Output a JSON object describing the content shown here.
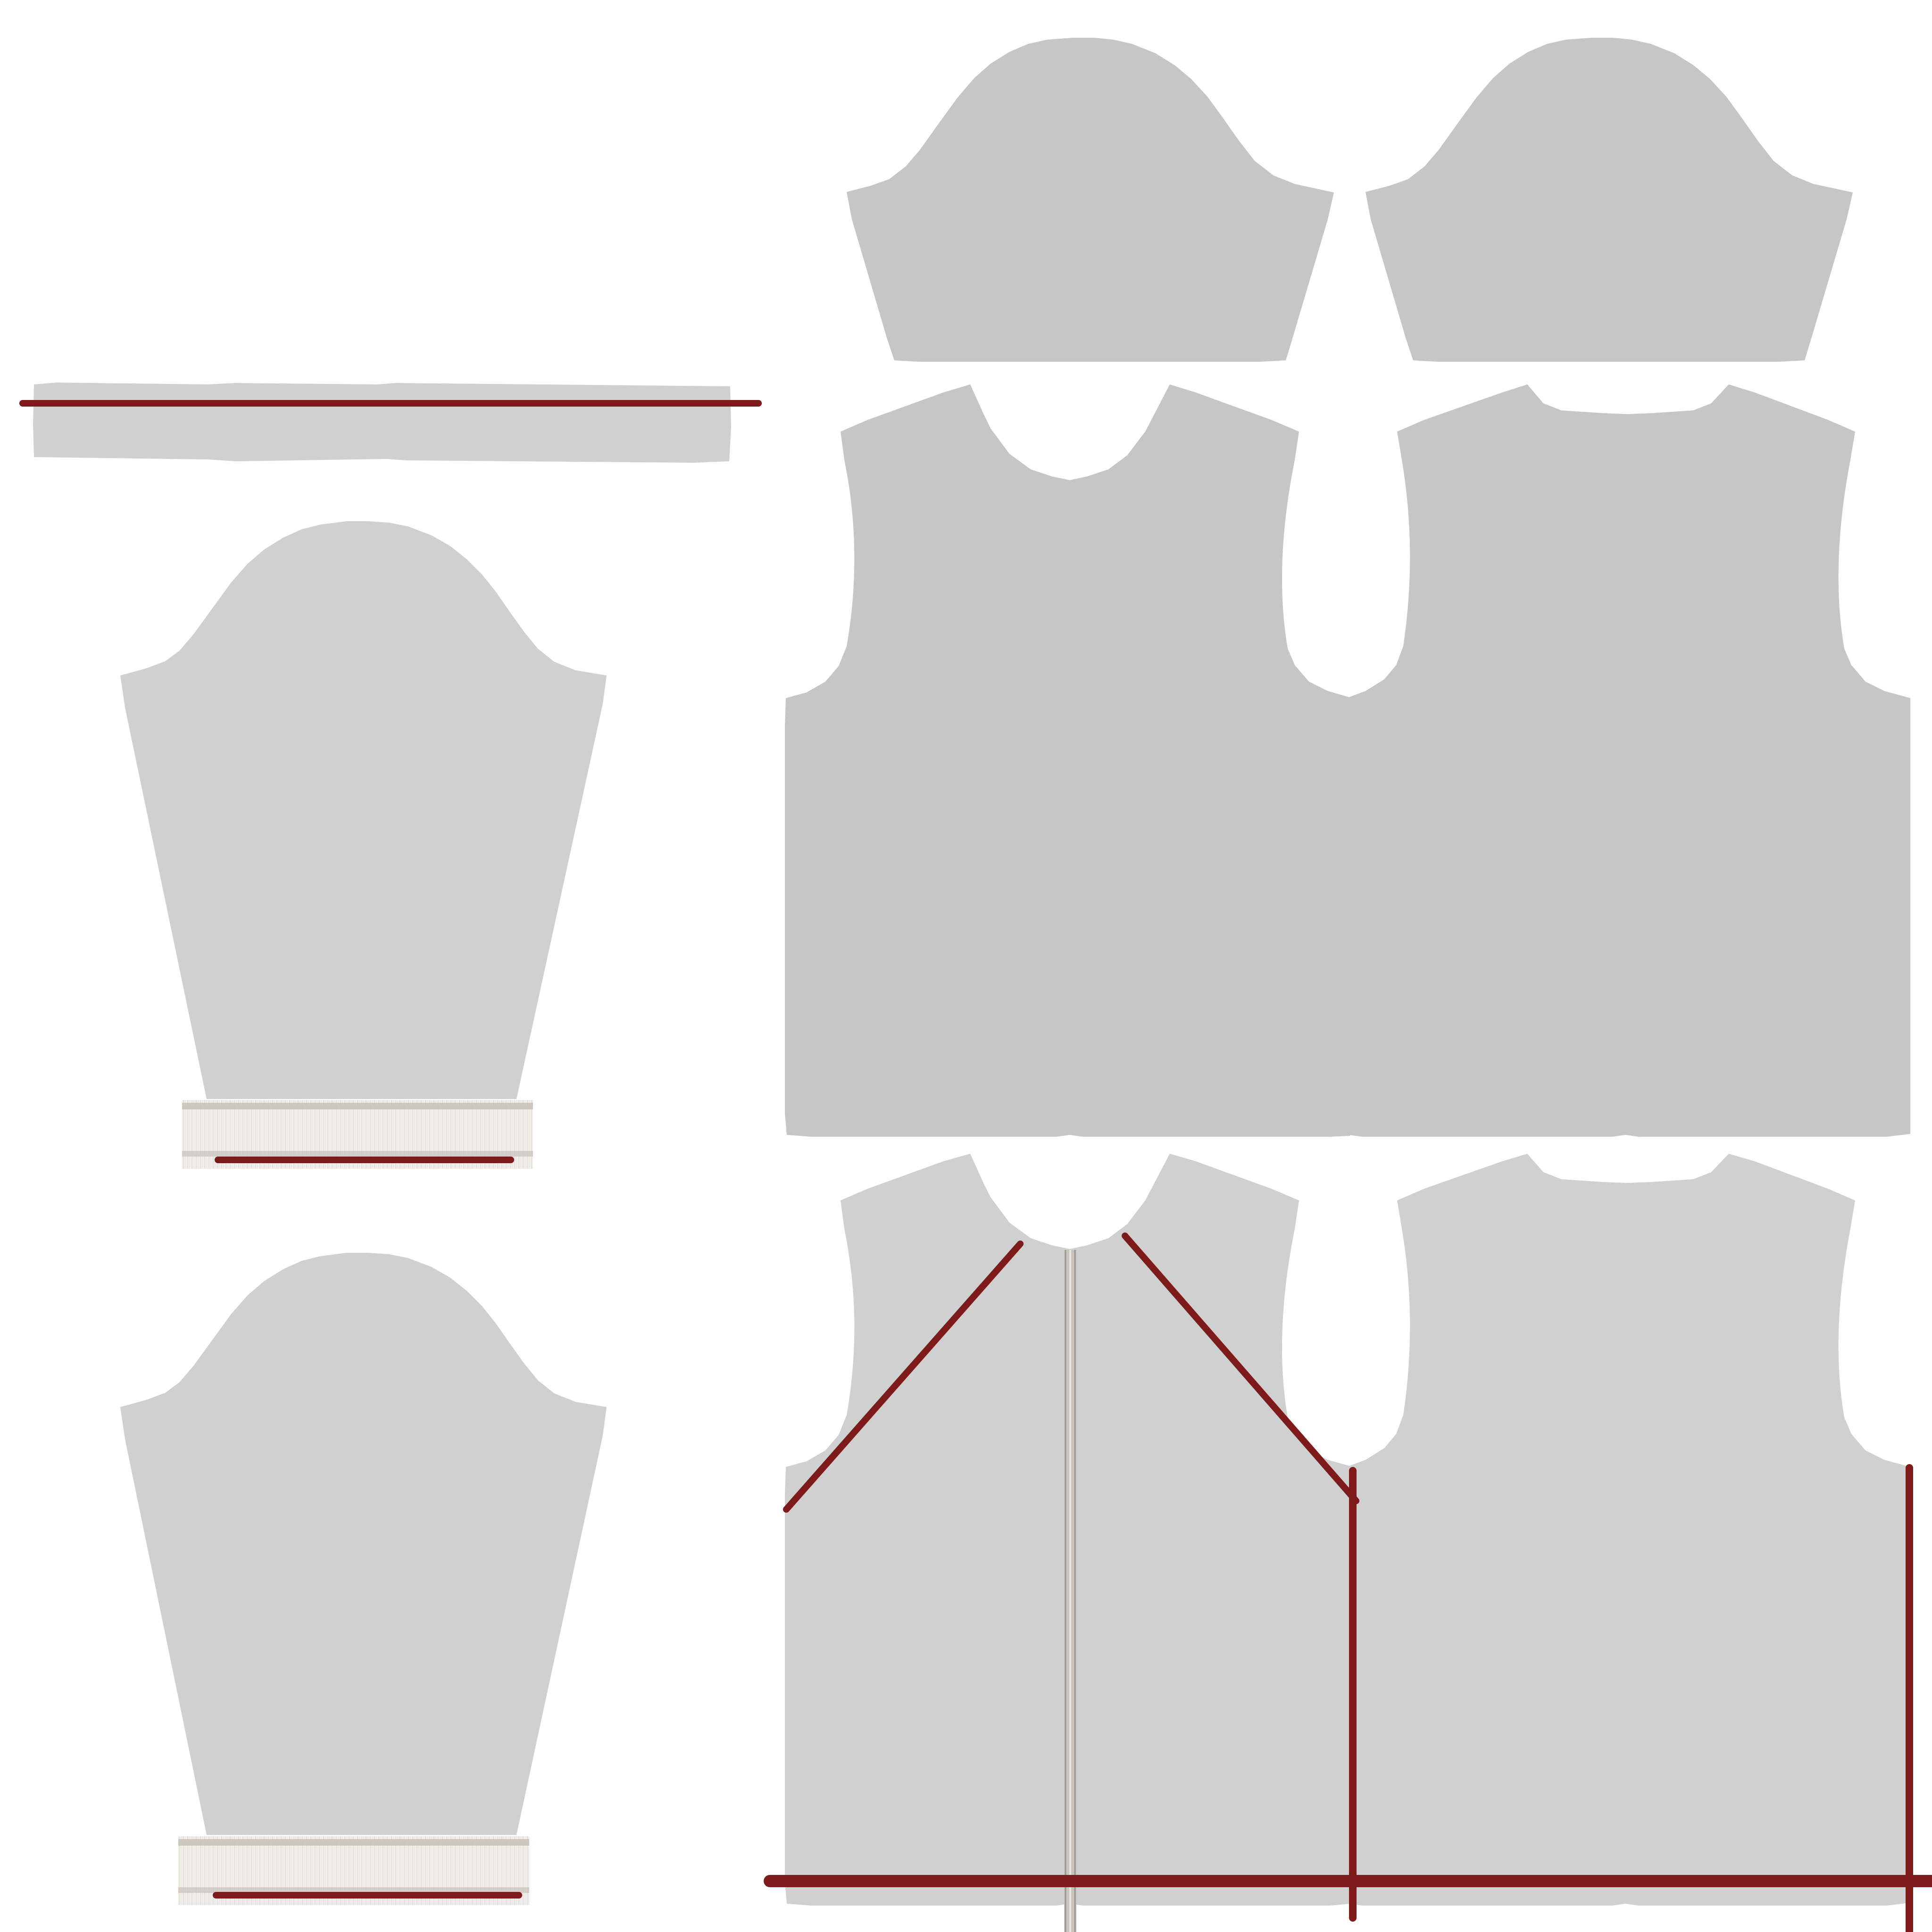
{
  "colors": {
    "background": "#ffffff",
    "panel_dark": "#c6c6c6",
    "panel_light": "#d0d0d0",
    "seam_line": "#7d1a1a",
    "zipper_stripe": "#b2aea8",
    "rib_band": "#f1efec",
    "rib_band_stripe": "#c9c1ba"
  },
  "pieces": [
    {
      "name": "collar-strip",
      "kind": "rectangle",
      "shade": "panel_light"
    },
    {
      "name": "left-sleeve",
      "kind": "sleeve",
      "shade": "panel_light"
    },
    {
      "name": "right-sleeve",
      "kind": "sleeve",
      "shade": "panel_light"
    },
    {
      "name": "left-sleeve-cap",
      "kind": "sleeve-cap",
      "shade": "panel_dark"
    },
    {
      "name": "right-sleeve-cap",
      "kind": "sleeve-cap",
      "shade": "panel_dark"
    },
    {
      "name": "front-lining",
      "kind": "bodice-front",
      "shade": "panel_dark"
    },
    {
      "name": "back-lining",
      "kind": "bodice-back",
      "shade": "panel_dark"
    },
    {
      "name": "front-panel",
      "kind": "bodice-front",
      "shade": "panel_light"
    },
    {
      "name": "back-panel",
      "kind": "bodice-back",
      "shade": "panel_light"
    },
    {
      "name": "left-cuff-rib",
      "kind": "rib-band",
      "shade": "rib_band"
    },
    {
      "name": "right-cuff-rib",
      "kind": "rib-band",
      "shade": "rib_band"
    },
    {
      "name": "front-zipper",
      "kind": "zipper",
      "shade": "zipper_stripe"
    }
  ]
}
